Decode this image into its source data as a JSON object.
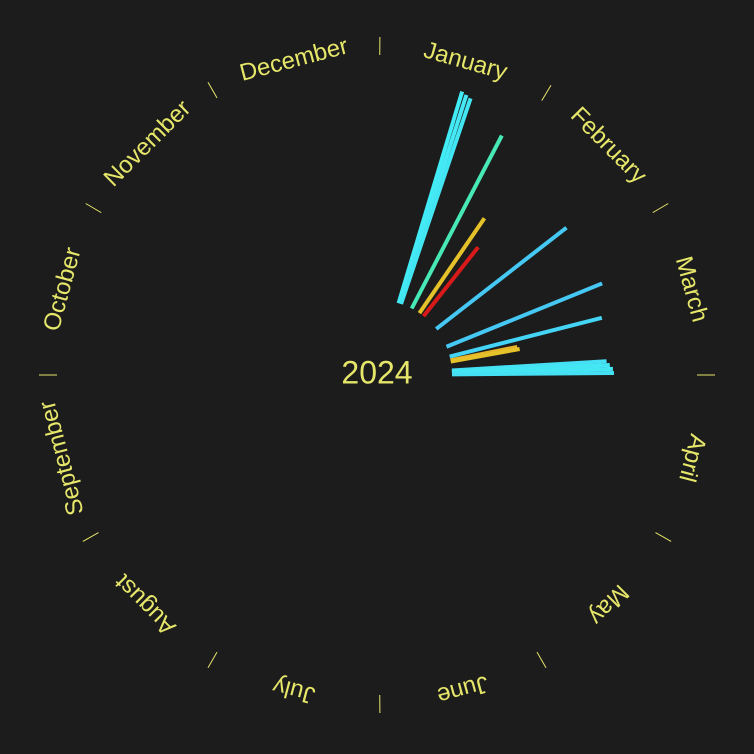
{
  "chart_data": {
    "type": "radial-bar",
    "title": "2024",
    "months": [
      "January",
      "February",
      "March",
      "April",
      "May",
      "June",
      "July",
      "August",
      "September",
      "October",
      "November",
      "December"
    ],
    "colors": {
      "background": "#1c1c1c",
      "text": "#e6e66a",
      "tick": "#e6e66a"
    },
    "bars": [
      {
        "date": "2024-01-17",
        "inner": 75,
        "outer": 296,
        "color": "#41ecf6"
      },
      {
        "date": "2024-01-18",
        "inner": 75,
        "outer": 294,
        "color": "#45e8f4"
      },
      {
        "date": "2024-01-19",
        "inner": 75,
        "outer": 292,
        "color": "#42e6f2"
      },
      {
        "date": "2024-01-28",
        "inner": 75,
        "outer": 270,
        "color": "#47eab7"
      },
      {
        "date": "2024-02-04",
        "inner": 75,
        "outer": 190,
        "color": "#e6c22a"
      },
      {
        "date": "2024-02-08",
        "inner": 75,
        "outer": 163,
        "color": "#d91a1a"
      },
      {
        "date": "2024-02-22",
        "inner": 75,
        "outer": 240,
        "color": "#45c8f4"
      },
      {
        "date": "2024-03-09",
        "inner": 75,
        "outer": 243,
        "color": "#45c8f4"
      },
      {
        "date": "2024-03-17",
        "inner": 75,
        "outer": 232,
        "color": "#43d4f6"
      },
      {
        "date": "2024-03-20",
        "inner": 75,
        "outer": 143,
        "color": "#e6b42a"
      },
      {
        "date": "2024-03-21",
        "inner": 75,
        "outer": 145,
        "color": "#e6c22a"
      },
      {
        "date": "2024-03-28",
        "inner": 75,
        "outer": 230,
        "color": "#45e0f4"
      },
      {
        "date": "2024-03-29",
        "inner": 75,
        "outer": 233,
        "color": "#45e6f4"
      },
      {
        "date": "2024-03-30",
        "inner": 75,
        "outer": 236,
        "color": "#45e6f4"
      },
      {
        "date": "2024-03-31",
        "inner": 75,
        "outer": 237,
        "color": "#45e0f4"
      }
    ]
  }
}
